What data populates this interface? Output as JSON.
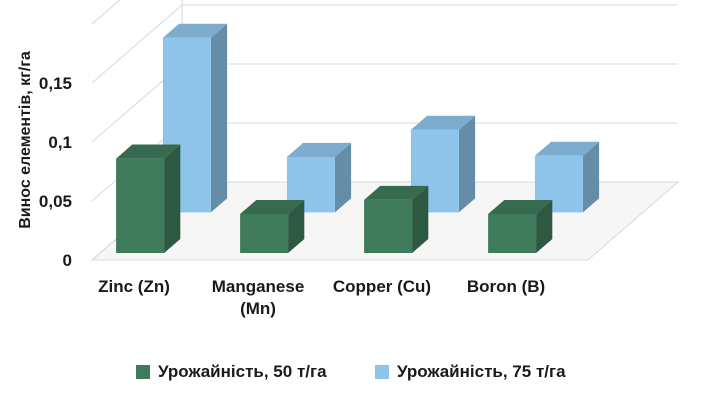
{
  "chart_data": {
    "type": "bar",
    "style": "3d-clustered-depth",
    "ylabel": "Винос елементів, кг/га",
    "ylim": [
      0,
      0.2
    ],
    "yticks": [
      "0",
      "0,05",
      "0,1",
      "0,15"
    ],
    "categories": [
      [
        "Zinc (Zn)"
      ],
      [
        "Manganese",
        "(Mn)"
      ],
      [
        "Copper (Cu)"
      ],
      [
        "Boron (B)"
      ]
    ],
    "series": [
      {
        "name": "Урожайність, 50 т/га",
        "color": "#3f7a5a",
        "values": [
          0.08,
          0.033,
          0.045,
          0.033
        ]
      },
      {
        "name": "Урожайність, 75 т/га",
        "color": "#8ec4ea",
        "values": [
          0.148,
          0.047,
          0.07,
          0.048
        ]
      }
    ],
    "grid": true,
    "legend_position": "bottom"
  }
}
